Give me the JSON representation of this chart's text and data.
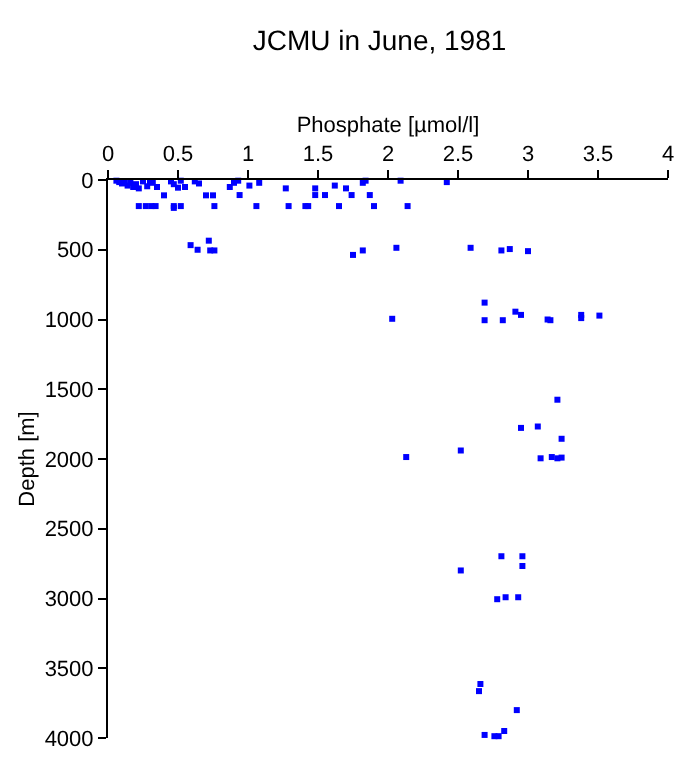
{
  "chart_data": {
    "type": "scatter",
    "title": "JCMU in June, 1981",
    "xlabel": "Phosphate [µmol/l]",
    "ylabel": "Depth [m]",
    "x": [
      0.06,
      0.08,
      0.1,
      0.12,
      0.14,
      0.16,
      0.18,
      0.2,
      0.22,
      0.25,
      0.28,
      0.3,
      0.32,
      0.35,
      0.4,
      0.45,
      0.47,
      0.5,
      0.52,
      0.55,
      0.62,
      0.65,
      0.7,
      0.75,
      0.87,
      0.9,
      0.93,
      0.94,
      1.01,
      1.08,
      1.27,
      1.48,
      1.48,
      1.55,
      1.62,
      1.7,
      1.74,
      1.82,
      1.84,
      1.87,
      2.09,
      2.42,
      0.22,
      0.27,
      0.31,
      0.34,
      0.47,
      0.47,
      0.52,
      0.76,
      1.06,
      1.29,
      1.41,
      1.43,
      1.65,
      1.9,
      2.14,
      0.59,
      0.64,
      0.72,
      0.73,
      0.76,
      1.75,
      1.82,
      2.06,
      2.59,
      2.81,
      2.87,
      3.0,
      2.69,
      2.69,
      2.82,
      2.91,
      2.95,
      2.03,
      3.14,
      3.16,
      3.38,
      3.38,
      3.51,
      3.21,
      2.95,
      3.07,
      3.24,
      2.13,
      2.52,
      3.09,
      3.17,
      3.21,
      3.24,
      2.81,
      2.96,
      2.96,
      2.52,
      2.78,
      2.84,
      2.93,
      2.66,
      2.65,
      2.92,
      2.69,
      2.76,
      2.79,
      2.83
    ],
    "values": [
      5,
      15,
      25,
      10,
      40,
      20,
      50,
      30,
      60,
      10,
      45,
      10,
      20,
      50,
      110,
      10,
      30,
      55,
      5,
      50,
      10,
      25,
      110,
      110,
      50,
      20,
      5,
      108,
      40,
      20,
      60,
      60,
      108,
      108,
      40,
      60,
      108,
      20,
      5,
      108,
      5,
      15,
      187,
      187,
      187,
      187,
      187,
      200,
      187,
      187,
      187,
      187,
      187,
      187,
      187,
      187,
      187,
      467,
      500,
      435,
      505,
      505,
      537,
      505,
      486,
      486,
      505,
      495,
      510,
      879,
      1005,
      1005,
      944,
      967,
      995,
      1000,
      1005,
      967,
      990,
      972,
      1575,
      1777,
      1767,
      1855,
      1986,
      1939,
      1995,
      1986,
      1995,
      1990,
      2697,
      2697,
      2767,
      2799,
      3005,
      2991,
      2991,
      3613,
      3664,
      3800,
      3978,
      3987,
      3987,
      3950
    ],
    "color": "#0000ff",
    "marker": "square",
    "xlim": [
      0,
      4
    ],
    "xticks": [
      0,
      0.5,
      1,
      1.5,
      2,
      2.5,
      3,
      3.5,
      4
    ],
    "ylim": [
      4000,
      0
    ],
    "yticks": [
      0,
      500,
      1000,
      1500,
      2000,
      2500,
      3000,
      3500,
      4000
    ]
  }
}
